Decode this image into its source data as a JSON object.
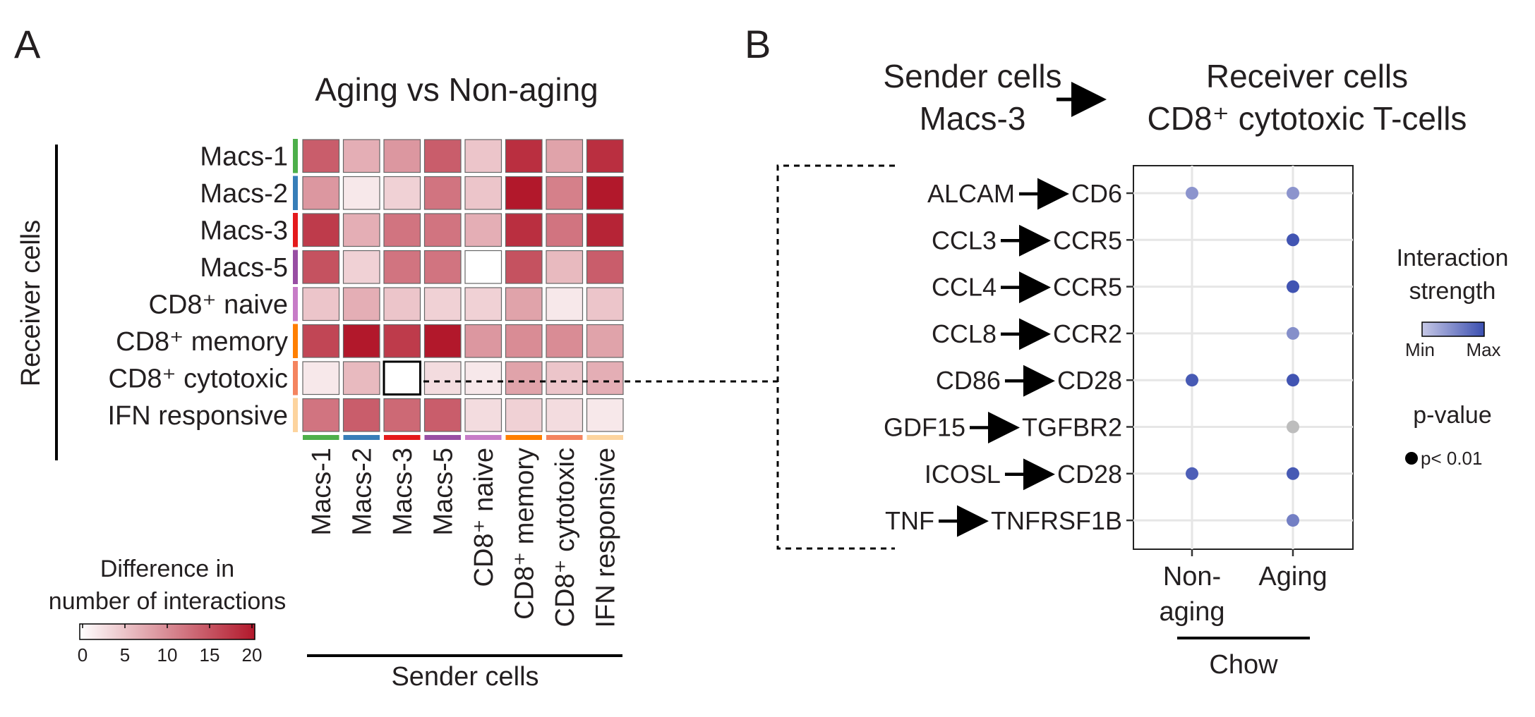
{
  "panel_a": {
    "letter": "A",
    "title": "Aging vs Non-aging",
    "ylabel": "Receiver cells",
    "xlabel": "Sender cells",
    "legend_title_line1": "Difference in",
    "legend_title_line2": "number of interactions",
    "legend_ticks": [
      "0",
      "5",
      "10",
      "15",
      "20"
    ]
  },
  "panel_b": {
    "letter": "B",
    "sender_line1": "Sender cells",
    "sender_line2": "Macs-3",
    "receiver_line1": "Receiver cells",
    "receiver_line2": "CD8⁺ cytotoxic T-cells",
    "xlabel": "Chow",
    "legend_strength_line1": "Interaction",
    "legend_strength_line2": "strength",
    "legend_min": "Min",
    "legend_max": "Max",
    "legend_pvalue_title": "p-value",
    "legend_pvalue_item": "p< 0.01"
  },
  "chart_data": [
    {
      "type": "heatmap",
      "title": "Aging vs Non-aging",
      "xlabel": "Sender cells",
      "ylabel": "Receiver cells",
      "value_range": [
        0,
        20
      ],
      "rows": [
        "Macs-1",
        "Macs-2",
        "Macs-3",
        "Macs-5",
        "CD8⁺ naive",
        "CD8⁺ memory",
        "CD8⁺ cytotoxic",
        "IFN responsive"
      ],
      "columns": [
        "Macs-1",
        "Macs-2",
        "Macs-3",
        "Macs-5",
        "CD8⁺ naive",
        "CD8⁺ memory",
        "CD8⁺ cytotoxic",
        "IFN responsive"
      ],
      "row_colors": [
        "#4daf4a",
        "#377eb8",
        "#e41a1c",
        "#984ea3",
        "#c77cc7",
        "#ff7f00",
        "#f4845f",
        "#fdd49e"
      ],
      "values": [
        [
          14,
          7,
          9,
          14,
          5,
          18,
          8,
          18
        ],
        [
          9,
          2,
          4,
          12,
          5,
          20,
          11,
          20
        ],
        [
          17,
          7,
          12,
          12,
          7,
          18,
          12,
          19
        ],
        [
          15,
          4,
          12,
          12,
          0,
          15,
          6,
          14
        ],
        [
          5,
          7,
          5,
          4,
          4,
          8,
          2,
          5
        ],
        [
          16,
          20,
          17,
          20,
          9,
          10,
          10,
          8
        ],
        [
          2,
          6,
          0,
          3,
          2,
          8,
          5,
          7
        ],
        [
          12,
          14,
          13,
          14,
          3,
          4,
          3,
          2
        ]
      ],
      "highlighted_cell": {
        "row": "CD8⁺ cytotoxic",
        "column": "Macs-3"
      }
    },
    {
      "type": "scatter",
      "x_categories": [
        "Non-aging",
        "Aging"
      ],
      "xlabel": "Chow",
      "pairs": [
        {
          "ligand": "ALCAM",
          "receptor": "CD6"
        },
        {
          "ligand": "CCL3",
          "receptor": "CCR5"
        },
        {
          "ligand": "CCL4",
          "receptor": "CCR5"
        },
        {
          "ligand": "CCL8",
          "receptor": "CCR2"
        },
        {
          "ligand": "CD86",
          "receptor": "CD28"
        },
        {
          "ligand": "GDF15",
          "receptor": "TGFBR2"
        },
        {
          "ligand": "ICOSL",
          "receptor": "CD28"
        },
        {
          "ligand": "TNF",
          "receptor": "TNFRSF1B"
        }
      ],
      "points": [
        {
          "pair": 0,
          "x": "Non-aging",
          "strength": 0.35
        },
        {
          "pair": 0,
          "x": "Aging",
          "strength": 0.35
        },
        {
          "pair": 1,
          "x": "Aging",
          "strength": 0.95
        },
        {
          "pair": 2,
          "x": "Aging",
          "strength": 0.95
        },
        {
          "pair": 3,
          "x": "Aging",
          "strength": 0.4
        },
        {
          "pair": 4,
          "x": "Non-aging",
          "strength": 0.9
        },
        {
          "pair": 4,
          "x": "Aging",
          "strength": 0.95
        },
        {
          "pair": 5,
          "x": "Aging",
          "strength": null
        },
        {
          "pair": 6,
          "x": "Non-aging",
          "strength": 0.85
        },
        {
          "pair": 6,
          "x": "Aging",
          "strength": 0.9
        },
        {
          "pair": 7,
          "x": "Aging",
          "strength": 0.55
        }
      ],
      "strength_colors": [
        "#b7b9dc",
        "#3b4fb0"
      ],
      "null_color": "#bdbdbd"
    }
  ]
}
